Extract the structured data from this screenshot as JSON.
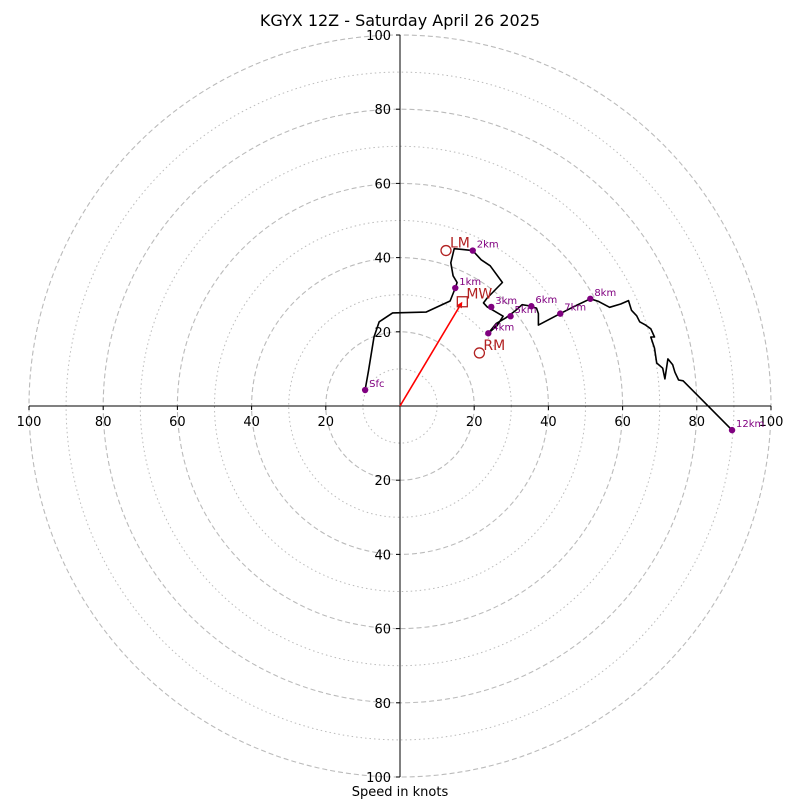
{
  "chart_data": {
    "type": "scatter",
    "title": "KGYX 12Z - Saturday April 26 2025",
    "xlabel": "Speed in knots",
    "ylabel": "",
    "xlim": [
      -100,
      100
    ],
    "ylim": [
      -100,
      100
    ],
    "grid": true,
    "ring_radii_major": [
      20,
      40,
      60,
      80,
      100
    ],
    "ring_radii_minor": [
      10,
      30,
      50,
      70,
      90
    ],
    "x_ticks": [
      {
        "value": -100,
        "label": "100"
      },
      {
        "value": -80,
        "label": "80"
      },
      {
        "value": -60,
        "label": "60"
      },
      {
        "value": -40,
        "label": "40"
      },
      {
        "value": -20,
        "label": "20"
      },
      {
        "value": 20,
        "label": "20"
      },
      {
        "value": 40,
        "label": "40"
      },
      {
        "value": 60,
        "label": "60"
      },
      {
        "value": 80,
        "label": "80"
      },
      {
        "value": 100,
        "label": "100"
      }
    ],
    "y_ticks": [
      {
        "value": 100,
        "label": "100"
      },
      {
        "value": 80,
        "label": "80"
      },
      {
        "value": 60,
        "label": "60"
      },
      {
        "value": 40,
        "label": "40"
      },
      {
        "value": 20,
        "label": "20"
      },
      {
        "value": -20,
        "label": "20"
      },
      {
        "value": -40,
        "label": "40"
      },
      {
        "value": -60,
        "label": "60"
      },
      {
        "value": -80,
        "label": "80"
      },
      {
        "value": -100,
        "label": "100"
      }
    ],
    "hodograph_trace": [
      [
        -9.4,
        4.3
      ],
      [
        -8.5,
        9.5
      ],
      [
        -7,
        18.6
      ],
      [
        -5.6,
        22.7
      ],
      [
        -2,
        25.1
      ],
      [
        7,
        25.3
      ],
      [
        13.5,
        28.3
      ],
      [
        14.9,
        31.8
      ],
      [
        15.4,
        33.3
      ],
      [
        14.3,
        35.1
      ],
      [
        13.7,
        38.6
      ],
      [
        14.6,
        42.4
      ],
      [
        16.8,
        42.2
      ],
      [
        19.6,
        41.9
      ],
      [
        21.9,
        39.4
      ],
      [
        24.3,
        37.8
      ],
      [
        27.6,
        33.3
      ],
      [
        23.5,
        29.1
      ],
      [
        22.5,
        27.8
      ],
      [
        23.5,
        26.7
      ],
      [
        25.1,
        25.8
      ],
      [
        27.8,
        24.2
      ],
      [
        26.2,
        21.7
      ],
      [
        23.8,
        19.6
      ],
      [
        25.9,
        22.2
      ],
      [
        28.6,
        23.8
      ],
      [
        31,
        25.6
      ],
      [
        32.9,
        27.3
      ],
      [
        34.3,
        27.1
      ],
      [
        36.8,
        26.4
      ],
      [
        37.3,
        24.9
      ],
      [
        37.3,
        21.8
      ],
      [
        40.5,
        23.5
      ],
      [
        43.2,
        24.9
      ],
      [
        46.7,
        26.7
      ],
      [
        51.3,
        28.9
      ],
      [
        53.5,
        28.2
      ],
      [
        56.5,
        26.6
      ],
      [
        59.5,
        27.5
      ],
      [
        61.6,
        28.4
      ],
      [
        62.4,
        25.8
      ],
      [
        63.8,
        24.3
      ],
      [
        64.6,
        22.7
      ],
      [
        66.2,
        21.8
      ],
      [
        67.6,
        20.8
      ],
      [
        68.6,
        18.6
      ],
      [
        67.6,
        18.6
      ],
      [
        68.6,
        15.6
      ],
      [
        69.2,
        11.6
      ],
      [
        70.8,
        10.2
      ],
      [
        71.4,
        7.3
      ],
      [
        72.2,
        12.7
      ],
      [
        73.5,
        11.1
      ],
      [
        74.1,
        9.1
      ],
      [
        75.1,
        7
      ],
      [
        76.3,
        6.8
      ],
      [
        89.5,
        -6.5
      ]
    ],
    "height_markers": [
      {
        "label": "Sfc",
        "x": -9.4,
        "y": 4.3
      },
      {
        "label": "1km",
        "x": 14.9,
        "y": 31.8
      },
      {
        "label": "2km",
        "x": 19.6,
        "y": 41.9
      },
      {
        "label": "3km",
        "x": 24.6,
        "y": 26.7
      },
      {
        "label": "4km",
        "x": 23.8,
        "y": 19.6
      },
      {
        "label": "5km",
        "x": 29.8,
        "y": 24.2
      },
      {
        "label": "6km",
        "x": 35.4,
        "y": 26.9
      },
      {
        "label": "7km",
        "x": 43.2,
        "y": 24.9
      },
      {
        "label": "8km",
        "x": 51.3,
        "y": 28.9
      },
      {
        "label": "12km",
        "x": 89.5,
        "y": -6.5
      }
    ],
    "storm_motion": [
      {
        "label": "LM",
        "x": 12.4,
        "y": 41.9,
        "marker": "circle"
      },
      {
        "label": "MW",
        "x": 16.8,
        "y": 28.1,
        "marker": "square"
      },
      {
        "label": "RM",
        "x": 21.4,
        "y": 14.3,
        "marker": "circle"
      }
    ],
    "mean_wind_vector": {
      "from": [
        0,
        0
      ],
      "to": [
        16.8,
        28.1
      ]
    },
    "colors": {
      "trace": "#000000",
      "height_marker": "#800080",
      "storm_motion": "#b22222",
      "vector": "#ff0000",
      "grid": "#bbbbbb"
    }
  }
}
